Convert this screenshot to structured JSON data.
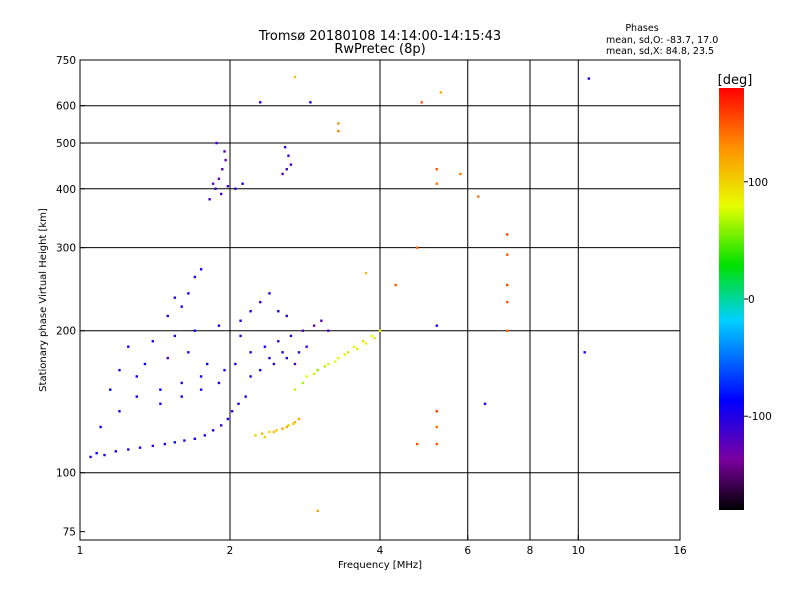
{
  "chart_data": {
    "type": "scatter",
    "title": "Tromsø 20180108 14:14:00-14:15:43",
    "subtitle": "RwPretec (8p)",
    "phases": {
      "heading": "Phases",
      "line_o": "mean, sd,O: -83.7, 17.0",
      "line_x": "mean, sd,X:  84.8, 23.5"
    },
    "xlabel": "Frequency [MHz]",
    "ylabel": "Stationary phase Virtual Height [km]",
    "x_scale": "log",
    "y_scale": "log",
    "xlim": [
      1,
      16
    ],
    "ylim": [
      72,
      750
    ],
    "x_ticks": [
      1,
      2,
      4,
      6,
      8,
      10,
      16
    ],
    "x_tick_labels": [
      "1",
      "2",
      "4",
      "6",
      "8",
      "10",
      "16"
    ],
    "y_ticks": [
      75,
      100,
      200,
      300,
      400,
      500,
      600,
      750
    ],
    "y_tick_labels": [
      "75",
      "100",
      "200",
      "300",
      "400",
      "500",
      "600",
      "750"
    ],
    "x_grid": [
      2,
      4,
      6,
      8,
      10
    ],
    "y_grid": [
      100,
      200,
      300,
      400,
      500,
      600
    ],
    "colorbar": {
      "label": "[deg]",
      "range": [
        -180,
        180
      ],
      "ticks": [
        100,
        0,
        -100
      ],
      "tick_labels": [
        "100",
        "0",
        "-100"
      ]
    },
    "series": [
      {
        "mode": "O",
        "points": [
          [
            1.05,
            108,
            -95
          ],
          [
            1.08,
            110,
            -88
          ],
          [
            1.12,
            109,
            -100
          ],
          [
            1.18,
            111,
            -92
          ],
          [
            1.25,
            112,
            -105
          ],
          [
            1.32,
            113,
            -98
          ],
          [
            1.4,
            114,
            -110
          ],
          [
            1.48,
            115,
            -96
          ],
          [
            1.55,
            116,
            -90
          ],
          [
            1.62,
            117,
            -102
          ],
          [
            1.7,
            118,
            -95
          ],
          [
            1.78,
            120,
            -100
          ],
          [
            1.85,
            123,
            -92
          ],
          [
            1.92,
            126,
            -105
          ],
          [
            1.98,
            130,
            -98
          ],
          [
            2.02,
            135,
            -110
          ],
          [
            2.08,
            140,
            -95
          ],
          [
            2.15,
            145,
            -100
          ],
          [
            1.1,
            125,
            -85
          ],
          [
            1.2,
            135,
            -92
          ],
          [
            1.3,
            145,
            -100
          ],
          [
            1.45,
            150,
            -88
          ],
          [
            1.6,
            155,
            -105
          ],
          [
            1.75,
            160,
            -95
          ],
          [
            1.2,
            165,
            -100
          ],
          [
            1.35,
            170,
            -92
          ],
          [
            1.5,
            175,
            -110
          ],
          [
            1.65,
            180,
            -98
          ],
          [
            1.8,
            170,
            -90
          ],
          [
            1.95,
            165,
            -100
          ],
          [
            1.25,
            185,
            -95
          ],
          [
            1.4,
            190,
            -105
          ],
          [
            1.55,
            195,
            -100
          ],
          [
            1.7,
            200,
            -92
          ],
          [
            1.9,
            205,
            -98
          ],
          [
            2.1,
            195,
            -110
          ],
          [
            1.15,
            150,
            -85
          ],
          [
            1.3,
            160,
            -95
          ],
          [
            1.45,
            140,
            -100
          ],
          [
            1.6,
            145,
            -88
          ],
          [
            1.75,
            150,
            -102
          ],
          [
            1.9,
            155,
            -96
          ],
          [
            2.2,
            180,
            -100
          ],
          [
            2.35,
            185,
            -95
          ],
          [
            2.5,
            190,
            -110
          ],
          [
            2.65,
            195,
            -100
          ],
          [
            2.8,
            200,
            -120
          ],
          [
            2.95,
            205,
            -130
          ],
          [
            3.05,
            210,
            -125
          ],
          [
            3.15,
            200,
            -118
          ],
          [
            2.4,
            175,
            -105
          ],
          [
            2.55,
            180,
            -98
          ],
          [
            2.7,
            170,
            -112
          ],
          [
            2.85,
            185,
            -108
          ],
          [
            2.05,
            170,
            -95
          ],
          [
            2.2,
            160,
            -100
          ],
          [
            2.3,
            165,
            -92
          ],
          [
            2.45,
            170,
            -105
          ],
          [
            2.6,
            175,
            -98
          ],
          [
            2.75,
            180,
            -110
          ],
          [
            1.5,
            215,
            -95
          ],
          [
            1.6,
            225,
            -100
          ],
          [
            1.65,
            240,
            -92
          ],
          [
            1.7,
            260,
            -105
          ],
          [
            1.75,
            270,
            -98
          ],
          [
            1.55,
            235,
            -100
          ],
          [
            2.1,
            210,
            -100
          ],
          [
            2.2,
            220,
            -95
          ],
          [
            2.3,
            230,
            -110
          ],
          [
            2.4,
            240,
            -105
          ],
          [
            2.5,
            220,
            -98
          ],
          [
            2.6,
            215,
            -100
          ],
          [
            1.82,
            380,
            -120
          ],
          [
            1.87,
            400,
            -115
          ],
          [
            1.9,
            420,
            -125
          ],
          [
            1.93,
            440,
            -118
          ],
          [
            1.96,
            460,
            -122
          ],
          [
            1.88,
            500,
            -110
          ],
          [
            1.95,
            480,
            -120
          ],
          [
            1.85,
            410,
            -128
          ],
          [
            1.92,
            390,
            -115
          ],
          [
            1.98,
            405,
            -118
          ],
          [
            2.05,
            400,
            -110
          ],
          [
            2.12,
            410,
            -105
          ],
          [
            2.55,
            430,
            -120
          ],
          [
            2.6,
            440,
            -110
          ],
          [
            2.65,
            450,
            -118
          ],
          [
            2.58,
            490,
            -105
          ],
          [
            2.62,
            470,
            -112
          ],
          [
            2.3,
            610,
            -100
          ],
          [
            2.9,
            610,
            -95
          ],
          [
            5.2,
            205,
            -100
          ],
          [
            6.5,
            140,
            -100
          ],
          [
            10.3,
            180,
            -100
          ],
          [
            10.5,
            685,
            -100
          ]
        ]
      },
      {
        "mode": "X",
        "points": [
          [
            2.25,
            120,
            100
          ],
          [
            2.32,
            121,
            110
          ],
          [
            2.4,
            122,
            95
          ],
          [
            2.48,
            123,
            105
          ],
          [
            2.55,
            124,
            120
          ],
          [
            2.62,
            126,
            100
          ],
          [
            2.7,
            128,
            110
          ],
          [
            2.75,
            130,
            115
          ],
          [
            2.35,
            119,
            98
          ],
          [
            2.45,
            122,
            108
          ],
          [
            2.6,
            125,
            112
          ],
          [
            2.68,
            127,
            102
          ],
          [
            2.7,
            150,
            70
          ],
          [
            2.85,
            160,
            80
          ],
          [
            3.0,
            165,
            60
          ],
          [
            3.15,
            170,
            75
          ],
          [
            3.3,
            175,
            80
          ],
          [
            3.45,
            180,
            90
          ],
          [
            3.55,
            185,
            85
          ],
          [
            3.7,
            190,
            95
          ],
          [
            3.85,
            195,
            80
          ],
          [
            4.0,
            200,
            88
          ],
          [
            2.8,
            155,
            65
          ],
          [
            2.95,
            162,
            72
          ],
          [
            3.1,
            168,
            68
          ],
          [
            3.25,
            172,
            78
          ],
          [
            3.4,
            178,
            82
          ],
          [
            3.6,
            183,
            90
          ],
          [
            3.75,
            188,
            86
          ],
          [
            3.9,
            193,
            92
          ],
          [
            4.3,
            250,
            150
          ],
          [
            4.75,
            300,
            145
          ],
          [
            4.85,
            610,
            150
          ],
          [
            5.2,
            440,
            150
          ],
          [
            5.2,
            410,
            140
          ],
          [
            5.2,
            115,
            150
          ],
          [
            5.2,
            125,
            140
          ],
          [
            5.2,
            135,
            160
          ],
          [
            4.75,
            115,
            150
          ],
          [
            5.3,
            640,
            120
          ],
          [
            6.3,
            385,
            140
          ],
          [
            7.2,
            320,
            160
          ],
          [
            7.2,
            290,
            150
          ],
          [
            7.2,
            250,
            155
          ],
          [
            7.2,
            230,
            150
          ],
          [
            7.2,
            200,
            145
          ],
          [
            5.8,
            430,
            140
          ],
          [
            3.3,
            550,
            130
          ],
          [
            3.3,
            530,
            135
          ],
          [
            3.75,
            265,
            110
          ],
          [
            3.0,
            83,
            120
          ],
          [
            2.7,
            690,
            110
          ]
        ]
      }
    ]
  }
}
